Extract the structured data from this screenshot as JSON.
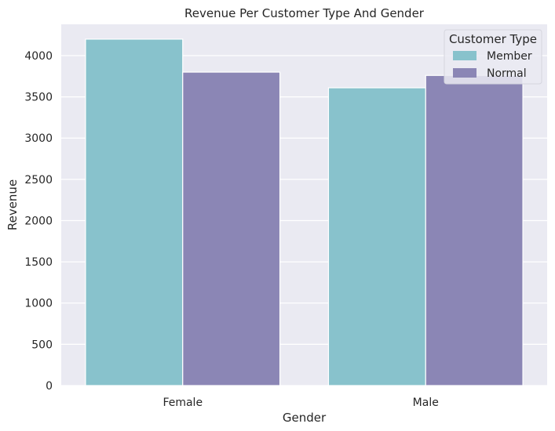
{
  "chart_data": {
    "type": "bar",
    "title": "Revenue Per Customer Type And Gender",
    "xlabel": "Gender",
    "ylabel": "Revenue",
    "categories": [
      "Female",
      "Male"
    ],
    "series": [
      {
        "name": "Member",
        "values": [
          4200,
          3610
        ],
        "color": "#88c2cc"
      },
      {
        "name": "Normal",
        "values": [
          3800,
          3760
        ],
        "color": "#8b86b5"
      }
    ],
    "ylim": [
      0,
      4380
    ],
    "yticks": [
      0,
      500,
      1000,
      1500,
      2000,
      2500,
      3000,
      3500,
      4000
    ],
    "grid": true,
    "legend": {
      "title": "Customer Type",
      "placement": "top-right"
    },
    "colors": {
      "background": "#eaeaf2",
      "grid": "#ffffff",
      "text": "#262626"
    }
  }
}
